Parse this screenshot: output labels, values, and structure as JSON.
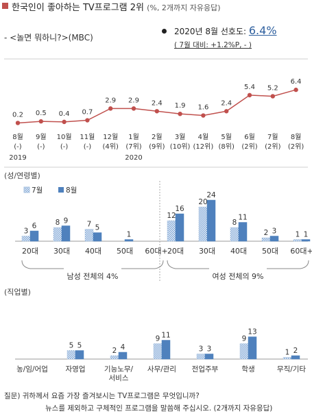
{
  "header": {
    "title": "한국인이 좋아하는 TV프로그램 2위",
    "title_note": "(%, 2개까지 자유응답)",
    "program": "- <놀면 뭐하니?>(MBC)",
    "pref_label": "2020년 8월 선호도:",
    "pref_value": "6.4%",
    "pref_change": "( 7월 대비: +1.2%P, - )"
  },
  "sections": {
    "gender_age": "(성/연령별)",
    "occupation": "(직업별)"
  },
  "footer": {
    "line1": "질문) 귀하께서 요즘 가장 즐겨보시는 TV프로그램은 무엇입니까?",
    "line2": "뉴스를 제외하고 구체적인 프로그램을 말씀해 주십시오. (2개까지 자유응답)"
  },
  "colors": {
    "title_marker": "#c0504d",
    "line": "#c0504d",
    "bar_jul": "#a9c3e0",
    "bar_aug": "#4f81bd",
    "accent": "#2e5f9e"
  },
  "chart_data": [
    {
      "type": "line",
      "x": [
        "8월",
        "9월",
        "10월",
        "11월",
        "12월",
        "1월",
        "2월",
        "3월",
        "4월",
        "5월",
        "6월",
        "7월",
        "8월"
      ],
      "x_sub": [
        "(-)",
        "(-)",
        "(-)",
        "(-)",
        "(4위)",
        "(7위)",
        "(9위)",
        "(10위)",
        "(12위)",
        "(8위)",
        "(2위)",
        "(2위)",
        "(2위)"
      ],
      "year_labels": [
        {
          "index": 0,
          "text": "2019"
        },
        {
          "index": 5,
          "text": "2020"
        }
      ],
      "values": [
        0.2,
        0.5,
        0.4,
        0.7,
        2.9,
        2.9,
        2.4,
        1.9,
        1.6,
        2.4,
        5.4,
        5.2,
        6.4
      ],
      "value_labels": [
        "0.2",
        "0.5",
        "0.4",
        "0.7",
        "2.9",
        "2.9",
        "2.4",
        "1.9",
        "1.6",
        "2.4",
        "5.4",
        "5.2",
        "6.4"
      ],
      "grid": false
    },
    {
      "type": "bar",
      "legend": [
        "7월",
        "8월"
      ],
      "groups": [
        {
          "label": "남성 전체의 4%",
          "categories": [
            "20대",
            "30대",
            "40대",
            "50대",
            "60대+"
          ],
          "series": [
            {
              "name": "7월",
              "values": [
                3,
                8,
                7,
                null,
                null
              ]
            },
            {
              "name": "8월",
              "values": [
                6,
                9,
                5,
                1,
                null
              ]
            }
          ]
        },
        {
          "label": "여성 전체의 9%",
          "categories": [
            "20대",
            "30대",
            "40대",
            "50대",
            "60대+"
          ],
          "series": [
            {
              "name": "7월",
              "values": [
                12,
                20,
                8,
                2,
                1
              ]
            },
            {
              "name": "8월",
              "values": [
                16,
                24,
                11,
                3,
                1
              ]
            }
          ]
        }
      ]
    },
    {
      "type": "bar",
      "categories": [
        "농/임/어업",
        "자영업",
        "기능노무/\n서비스",
        "사무/관리",
        "전업주부",
        "학생",
        "무직/기타"
      ],
      "series": [
        {
          "name": "7월",
          "values": [
            null,
            5,
            2,
            9,
            3,
            9,
            1
          ]
        },
        {
          "name": "8월",
          "values": [
            null,
            5,
            4,
            11,
            3,
            13,
            2
          ]
        }
      ]
    }
  ]
}
